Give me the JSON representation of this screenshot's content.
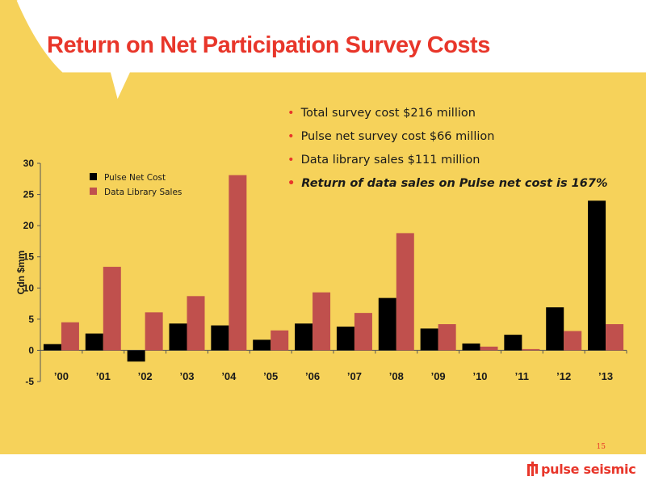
{
  "title": "Return on Net Participation Survey Costs",
  "bullets": [
    "Total survey cost $216 million",
    "Pulse net survey cost $66 million",
    "Data library sales  $111 million",
    "Return of data sales on Pulse net cost is 167%"
  ],
  "page_number": "15",
  "logo_text": "pulse seismic",
  "colors": {
    "background": "#f6d25a",
    "accent": "#e8362a",
    "pulse_net_cost": "#000000",
    "data_library_sales": "#c0504d"
  },
  "chart_data": {
    "type": "bar",
    "categories": [
      "'00",
      "'01",
      "'02",
      "'03",
      "'04",
      "'05",
      "'06",
      "'07",
      "'08",
      "'09",
      "'10",
      "'11",
      "'12",
      "'13"
    ],
    "series": [
      {
        "name": "Pulse Net Cost",
        "values": [
          1.0,
          2.7,
          -1.8,
          4.3,
          4.0,
          1.7,
          4.3,
          3.8,
          8.4,
          3.5,
          1.1,
          2.5,
          6.9,
          24.0
        ]
      },
      {
        "name": "Data Library Sales",
        "values": [
          4.5,
          13.4,
          6.1,
          8.7,
          28.1,
          3.2,
          9.3,
          6.0,
          18.8,
          4.2,
          0.6,
          0.2,
          3.1,
          4.2
        ]
      }
    ],
    "ylabel": "Cdn $mm",
    "ylim": [
      -5,
      30
    ],
    "yticks": [
      "-5",
      "0",
      "5",
      "10",
      "15",
      "20",
      "25",
      "30"
    ],
    "legend_position": "top-left",
    "grid": false
  }
}
